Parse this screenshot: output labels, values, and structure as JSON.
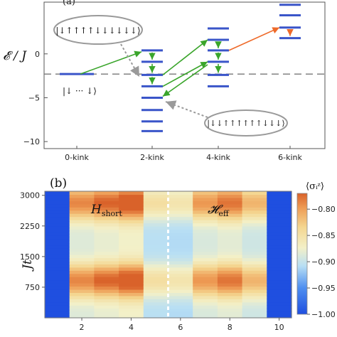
{
  "figure": {
    "panel_a_label": "(a)",
    "panel_b_label": "(b)"
  },
  "chart_data": [
    {
      "type": "energy-level diagram",
      "ylabel": "𝓔 / J",
      "ylim": [
        -10.8,
        5.9
      ],
      "yticks": [
        0,
        -5,
        -10
      ],
      "categories": [
        "0-kink",
        "2-kink",
        "4-kink",
        "6-kink"
      ],
      "reference_energy": -2.3,
      "levels": {
        "0-kink": [
          -2.3
        ],
        "2-kink": [
          0.4,
          -0.9,
          -2.4,
          -3.7,
          -5.0,
          -6.4,
          -7.7,
          -8.8
        ],
        "4-kink": [
          2.9,
          1.6,
          0.4,
          -0.9,
          -2.4,
          -3.7
        ],
        "6-kink": [
          5.6,
          4.4,
          3.0,
          1.8
        ]
      },
      "state_labels": {
        "top_left": "|↓↑↑↑↑↓↓↓↓↓↓⟩",
        "bottom_left": "|↓ ··· ↓⟩",
        "bottom_right": "|↓↓↑↑↑↑↑↑↓↓↓⟩"
      }
    },
    {
      "type": "heatmap",
      "ylabel": "Jt",
      "xticks": [
        2,
        4,
        6,
        8,
        10
      ],
      "yticks": [
        750,
        1500,
        2250,
        3000
      ],
      "xlim": [
        0.5,
        10.5
      ],
      "ylim": [
        0,
        3100
      ],
      "columns": 10,
      "divider_x": 5.5,
      "region_labels": [
        "H_short",
        "𝓗_eff"
      ],
      "colorbar": {
        "label": "⟨σᵢᶻ⟩",
        "range": [
          -1.0,
          -0.77
        ],
        "ticks": [
          -0.8,
          -0.85,
          -0.9,
          -0.95,
          -1.0
        ],
        "tick_labels": [
          "-0.80",
          "-0.85",
          "-0.90",
          "-0.95",
          "-1.00"
        ]
      }
    }
  ]
}
